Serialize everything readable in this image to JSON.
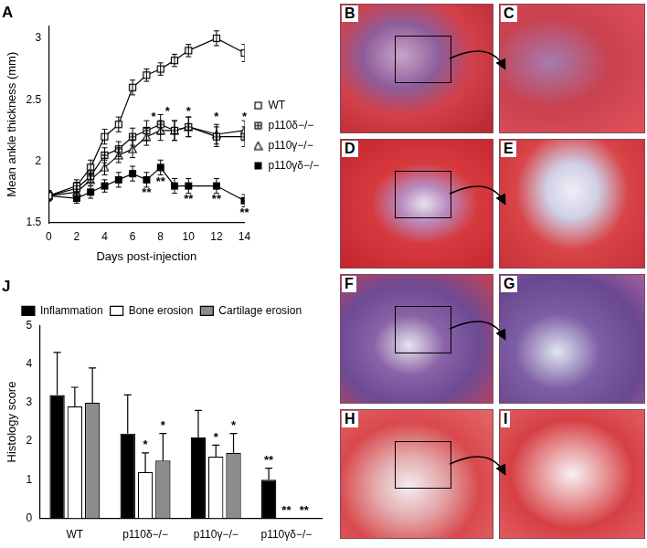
{
  "chart_data": [
    {
      "type": "line",
      "title": "A",
      "x_label": "Days post-injection",
      "y_label": "Mean ankle thickness (mm)",
      "x": [
        0,
        2,
        3,
        4,
        5,
        6,
        7,
        8,
        9,
        10,
        12,
        14
      ],
      "series": [
        {
          "name": "WT",
          "color": "#000000",
          "marker": "square_open",
          "values": [
            1.72,
            1.8,
            1.95,
            2.2,
            2.3,
            2.6,
            2.7,
            2.75,
            2.82,
            2.9,
            3.0,
            2.88
          ],
          "errors": [
            0.04,
            0.05,
            0.06,
            0.06,
            0.06,
            0.06,
            0.05,
            0.05,
            0.05,
            0.05,
            0.06,
            0.07
          ]
        },
        {
          "name": "p110δ−/−",
          "color": "#000000",
          "marker": "square_cross",
          "values": [
            1.72,
            1.78,
            1.88,
            2.05,
            2.1,
            2.2,
            2.25,
            2.3,
            2.25,
            2.28,
            2.2,
            2.2
          ],
          "errors": [
            0.04,
            0.05,
            0.05,
            0.06,
            0.06,
            0.07,
            0.08,
            0.08,
            0.08,
            0.08,
            0.08,
            0.08
          ]
        },
        {
          "name": "p110γ−/−",
          "color": "#000000",
          "marker": "triangle_open",
          "values": [
            1.72,
            1.75,
            1.85,
            1.95,
            2.05,
            2.1,
            2.2,
            2.25,
            2.25,
            2.28,
            2.22,
            2.25
          ],
          "errors": [
            0.04,
            0.05,
            0.05,
            0.06,
            0.06,
            0.07,
            0.07,
            0.08,
            0.08,
            0.08,
            0.08,
            0.08
          ]
        },
        {
          "name": "p110γδ−/−",
          "color": "#000000",
          "marker": "square_filled",
          "values": [
            1.72,
            1.7,
            1.75,
            1.8,
            1.85,
            1.9,
            1.85,
            1.95,
            1.8,
            1.8,
            1.8,
            1.68
          ],
          "errors": [
            0.04,
            0.04,
            0.05,
            0.05,
            0.06,
            0.06,
            0.06,
            0.06,
            0.06,
            0.06,
            0.06,
            0.05
          ]
        }
      ],
      "annotations": [
        {
          "x": 7.5,
          "y": 2.36,
          "text": "*"
        },
        {
          "x": 8.5,
          "y": 2.4,
          "text": "*"
        },
        {
          "x": 10,
          "y": 2.4,
          "text": "*"
        },
        {
          "x": 12,
          "y": 2.36,
          "text": "*"
        },
        {
          "x": 14,
          "y": 2.36,
          "text": "*"
        },
        {
          "x": 7,
          "y": 1.74,
          "text": "**"
        },
        {
          "x": 8,
          "y": 1.83,
          "text": "**"
        },
        {
          "x": 10,
          "y": 1.69,
          "text": "**"
        },
        {
          "x": 12,
          "y": 1.69,
          "text": "**"
        },
        {
          "x": 14,
          "y": 1.58,
          "text": "**"
        }
      ],
      "xlim": [
        0,
        14
      ],
      "xticks": [
        0,
        2,
        4,
        6,
        8,
        10,
        12,
        14
      ],
      "ylim": [
        1.5,
        3.1
      ],
      "yticks": [
        1.5,
        2,
        2.5,
        3
      ],
      "grid": false,
      "legend": "right"
    },
    {
      "type": "bar",
      "title": "J",
      "y_label": "Histology score",
      "categories": [
        "WT",
        "p110δ−/−",
        "p110γ−/−",
        "p110γδ−/−"
      ],
      "series": [
        {
          "name": "Inflammation",
          "color": "#000000",
          "values": [
            3.2,
            2.2,
            2.1,
            1.0
          ],
          "errors": [
            1.1,
            1.0,
            0.7,
            0.3
          ]
        },
        {
          "name": "Bone erosion",
          "color": "#ffffff",
          "values": [
            2.9,
            1.2,
            1.6,
            0
          ],
          "errors": [
            0.5,
            0.5,
            0.3,
            0
          ]
        },
        {
          "name": "Cartilage erosion",
          "color": "#8c8c8c",
          "values": [
            3.0,
            1.5,
            1.7,
            0
          ],
          "errors": [
            0.9,
            0.7,
            0.5,
            0
          ]
        }
      ],
      "annotations": [
        {
          "category": "p110δ−/−",
          "series": "Bone erosion",
          "text": "*"
        },
        {
          "category": "p110δ−/−",
          "series": "Cartilage erosion",
          "text": "*"
        },
        {
          "category": "p110γ−/−",
          "series": "Bone erosion",
          "text": "*"
        },
        {
          "category": "p110γ−/−",
          "series": "Cartilage erosion",
          "text": "*"
        },
        {
          "category": "p110γδ−/−",
          "series": "Inflammation",
          "text": "**"
        },
        {
          "category": "p110γδ−/−",
          "series": "Bone erosion",
          "text": "**"
        },
        {
          "category": "p110γδ−/−",
          "series": "Cartilage erosion",
          "text": "**"
        }
      ],
      "ylim": [
        0,
        5
      ],
      "yticks": [
        0,
        1,
        2,
        3,
        4,
        5
      ],
      "grid": false,
      "legend": "top"
    }
  ],
  "images": [
    {
      "label": "B"
    },
    {
      "label": "C"
    },
    {
      "label": "D"
    },
    {
      "label": "E"
    },
    {
      "label": "F"
    },
    {
      "label": "G"
    },
    {
      "label": "H"
    },
    {
      "label": "I"
    }
  ]
}
